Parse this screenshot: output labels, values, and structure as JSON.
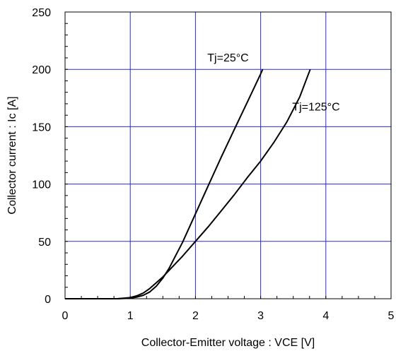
{
  "chart_data": {
    "type": "line",
    "title": "",
    "xlabel": "Collector-Emitter voltage : VCE [V]",
    "ylabel": "Collector current : Ic [A]",
    "xlim": [
      0,
      5
    ],
    "ylim": [
      0,
      250
    ],
    "x_ticks": [
      0,
      1,
      2,
      3,
      4,
      5
    ],
    "y_ticks": [
      0,
      50,
      100,
      150,
      200,
      250
    ],
    "x_tick_labels": [
      "0",
      "1",
      "2",
      "3",
      "4",
      "5"
    ],
    "y_tick_labels": [
      "0",
      "50",
      "100",
      "150",
      "200",
      "250"
    ],
    "grid": true,
    "grid_color": "#2b2bd0",
    "line_color": "#000000",
    "series": [
      {
        "name": "Tj=25°C",
        "x": [
          0,
          0.8,
          1.0,
          1.1,
          1.2,
          1.3,
          1.4,
          1.5,
          1.6,
          1.7,
          1.8,
          2.0,
          2.2,
          2.4,
          2.6,
          2.8,
          3.0,
          3.03
        ],
        "y": [
          0,
          0,
          0.5,
          1.5,
          3,
          6,
          11,
          18,
          27,
          38,
          49,
          74,
          99,
          124,
          148,
          172,
          196,
          200
        ]
      },
      {
        "name": "Tj=125°C",
        "x": [
          0,
          0.8,
          1.0,
          1.1,
          1.2,
          1.3,
          1.4,
          1.5,
          1.6,
          1.7,
          1.8,
          2.0,
          2.2,
          2.4,
          2.6,
          2.8,
          3.0,
          3.2,
          3.4,
          3.6,
          3.76
        ],
        "y": [
          0,
          0,
          1,
          2.5,
          5,
          9,
          14,
          19,
          25,
          31,
          37,
          50,
          63,
          77,
          91,
          106,
          120,
          136,
          154,
          176,
          200
        ]
      }
    ],
    "annotations": [
      {
        "text": "Tj=25°C",
        "x": 2.5,
        "y": 207
      },
      {
        "text": "Tj=125°C",
        "x": 3.85,
        "y": 164
      }
    ]
  }
}
